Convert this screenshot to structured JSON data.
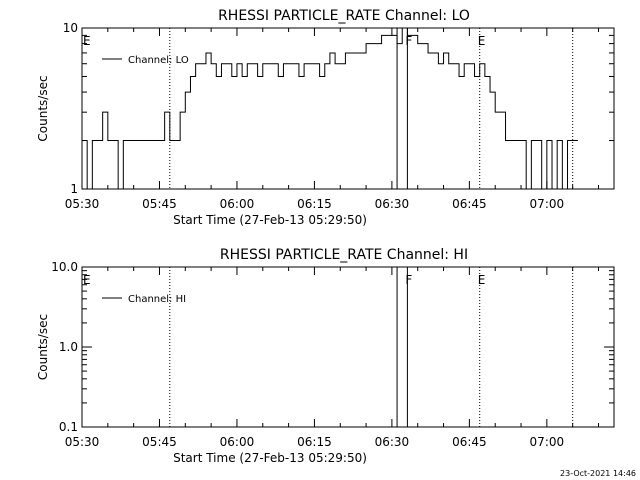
{
  "footer": {
    "timestamp": "23-Oct-2021 14:46"
  },
  "chart_data": [
    {
      "type": "line",
      "title": "RHESSI PARTICLE_RATE Channel: LO",
      "xlabel": "Start Time (27-Feb-13 05:29:50)",
      "ylabel": "Counts/sec",
      "y_scale": "log",
      "ylim": [
        1,
        10
      ],
      "yticks": [
        {
          "v": 1,
          "label": "1"
        },
        {
          "v": 10,
          "label": "10"
        }
      ],
      "xlim": [
        "05:30",
        "07:13"
      ],
      "xticks": [
        "05:30",
        "05:45",
        "06:00",
        "06:15",
        "06:30",
        "06:45",
        "07:00"
      ],
      "legend": {
        "placement": "top-left",
        "label": "Channel: LO"
      },
      "markers": [
        {
          "time": "05:30",
          "label": "E",
          "style": "none"
        },
        {
          "time": "05:47",
          "label": "",
          "style": "dotted"
        },
        {
          "time": "06:31",
          "label": "",
          "style": "solid"
        },
        {
          "time": "06:33",
          "label": "F",
          "style": "solid"
        },
        {
          "time": "06:47",
          "label": "E",
          "style": "dotted"
        },
        {
          "time": "07:05",
          "label": "",
          "style": "dotted"
        }
      ],
      "series": [
        {
          "name": "Channel: LO",
          "times": [
            "05:30",
            "05:31",
            "05:32",
            "05:33",
            "05:34",
            "05:35",
            "05:36",
            "05:37",
            "05:38",
            "05:39",
            "05:40",
            "05:41",
            "05:42",
            "05:43",
            "05:44",
            "05:45",
            "05:46",
            "05:47",
            "05:48",
            "05:49",
            "05:50",
            "05:51",
            "05:52",
            "05:53",
            "05:54",
            "05:55",
            "05:56",
            "05:57",
            "05:58",
            "05:59",
            "06:00",
            "06:01",
            "06:02",
            "06:03",
            "06:04",
            "06:05",
            "06:06",
            "06:07",
            "06:08",
            "06:09",
            "06:10",
            "06:11",
            "06:12",
            "06:13",
            "06:14",
            "06:15",
            "06:16",
            "06:17",
            "06:18",
            "06:19",
            "06:20",
            "06:21",
            "06:22",
            "06:23",
            "06:24",
            "06:25",
            "06:26",
            "06:27",
            "06:28",
            "06:29",
            "06:30",
            "06:31",
            "06:32",
            "06:33",
            "06:34",
            "06:35",
            "06:36",
            "06:37",
            "06:38",
            "06:39",
            "06:40",
            "06:41",
            "06:42",
            "06:43",
            "06:44",
            "06:45",
            "06:46",
            "06:47",
            "06:48",
            "06:49",
            "06:50",
            "06:51",
            "06:52",
            "06:53",
            "06:54",
            "06:55",
            "06:56",
            "06:57",
            "06:58",
            "06:59",
            "07:00",
            "07:01",
            "07:02",
            "07:03",
            "07:04",
            "07:05"
          ],
          "values": [
            2,
            1,
            2,
            2,
            3,
            2,
            2,
            1,
            2,
            2,
            2,
            2,
            2,
            2,
            2,
            2,
            3,
            2,
            2,
            3,
            4,
            5,
            6,
            6,
            7,
            6,
            5,
            6,
            6,
            5,
            6,
            5,
            6,
            6,
            5,
            6,
            6,
            6,
            5,
            6,
            6,
            6,
            5,
            6,
            6,
            6,
            5,
            6,
            7,
            6,
            6,
            7,
            7,
            7,
            7,
            8,
            8,
            8,
            9,
            9,
            9,
            8,
            10,
            9,
            9,
            8,
            8,
            7,
            7,
            6,
            7,
            6,
            6,
            5,
            6,
            6,
            5,
            6,
            5,
            4,
            3,
            3,
            2,
            2,
            2,
            2,
            1,
            2,
            2,
            1,
            2,
            1,
            2,
            1,
            2,
            2
          ]
        }
      ]
    },
    {
      "type": "line",
      "title": "RHESSI PARTICLE_RATE Channel: HI",
      "xlabel": "Start Time (27-Feb-13 05:29:50)",
      "ylabel": "Counts/sec",
      "y_scale": "log",
      "ylim": [
        0.1,
        10
      ],
      "yticks": [
        {
          "v": 0.1,
          "label": "0.1"
        },
        {
          "v": 1,
          "label": "1.0"
        },
        {
          "v": 10,
          "label": "10.0"
        }
      ],
      "xlim": [
        "05:30",
        "07:13"
      ],
      "xticks": [
        "05:30",
        "05:45",
        "06:00",
        "06:15",
        "06:30",
        "06:45",
        "07:00"
      ],
      "legend": {
        "placement": "top-left",
        "label": "Channel: HI"
      },
      "markers": [
        {
          "time": "05:30",
          "label": "E",
          "style": "none"
        },
        {
          "time": "05:47",
          "label": "",
          "style": "dotted"
        },
        {
          "time": "06:31",
          "label": "",
          "style": "solid"
        },
        {
          "time": "06:33",
          "label": "F",
          "style": "solid"
        },
        {
          "time": "06:47",
          "label": "E",
          "style": "dotted"
        },
        {
          "time": "07:05",
          "label": "",
          "style": "dotted"
        }
      ],
      "series": [
        {
          "name": "Channel: HI",
          "times": [],
          "values": []
        }
      ]
    }
  ]
}
